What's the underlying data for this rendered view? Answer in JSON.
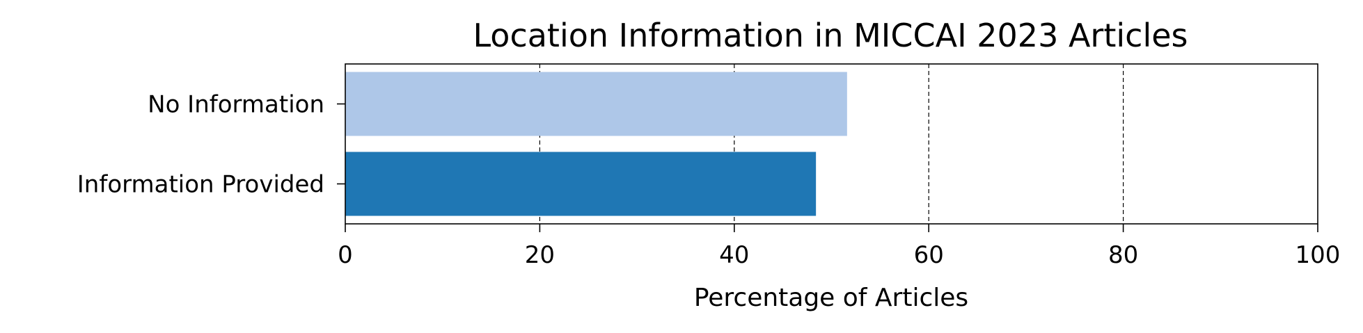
{
  "chart_data": {
    "type": "bar",
    "orientation": "horizontal",
    "title": "Location Information in MICCAI 2023 Articles",
    "xlabel": "Percentage of Articles",
    "ylabel": "",
    "xlim": [
      0,
      100
    ],
    "xticks": [
      0,
      20,
      40,
      60,
      80,
      100
    ],
    "grid": "x, dashed",
    "categories": [
      "No Information",
      "Information Provided"
    ],
    "values": [
      51.6,
      48.4
    ],
    "colors": [
      "#aec7e8",
      "#1f77b4"
    ]
  }
}
